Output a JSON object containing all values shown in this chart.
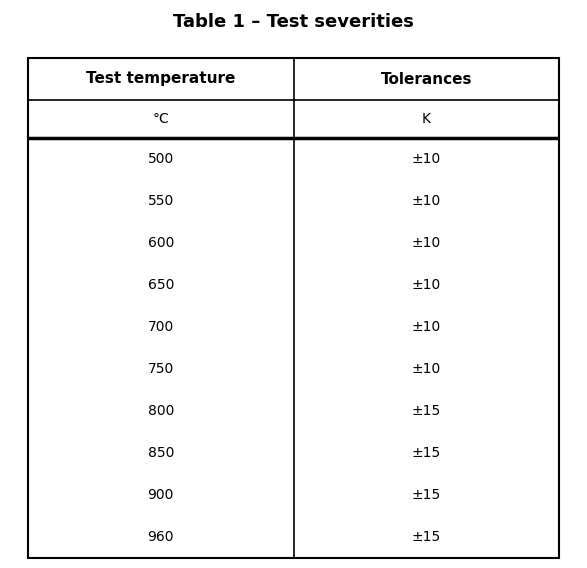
{
  "title": "Table 1 – Test severities",
  "title_fontsize": 13,
  "title_fontweight": "bold",
  "col_headers": [
    "Test temperature",
    "Tolerances"
  ],
  "col_subheaders": [
    "°C",
    "K"
  ],
  "col_header_fontsize": 11,
  "col_header_fontweight": "bold",
  "col_subheader_fontsize": 10,
  "data_fontsize": 10,
  "temperatures": [
    "500",
    "550",
    "600",
    "650",
    "700",
    "750",
    "800",
    "850",
    "900",
    "960"
  ],
  "tolerances": [
    "±10",
    "±10",
    "±10",
    "±10",
    "±10",
    "±10",
    "±15",
    "±15",
    "±15",
    "±15"
  ],
  "background_color": "#ffffff",
  "text_color": "#000000",
  "line_color": "#000000",
  "outer_border_lw": 1.5,
  "header_divider_lw": 2.5,
  "inner_header_lw": 1.2,
  "col_divider_lw": 1.2,
  "fig_width": 5.87,
  "fig_height": 5.68,
  "dpi": 100
}
